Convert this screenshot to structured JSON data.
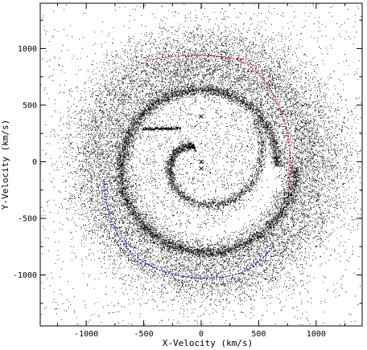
{
  "chart_data": {
    "type": "scatter",
    "xlabel": "X-Velocity (km/s)",
    "ylabel": "Y-Velocity (km/s)",
    "xlim": [
      -1400,
      1400
    ],
    "ylim": [
      -1450,
      1400
    ],
    "xticks": [
      -1000,
      -500,
      0,
      500,
      1000
    ],
    "yticks": [
      -1000,
      -500,
      0,
      500,
      1000
    ],
    "grid": false,
    "colors": {
      "points": "#000000",
      "red_curve": "#e03030",
      "blue_curve": "#2a2ad8"
    },
    "series": [
      {
        "marker": "dots",
        "color": "#000000",
        "distribution": "dense ring between ~650 and ~1050 km/s speed with a sharp inner spiral edge; sparse scatter elsewhere",
        "ring_inner_radius": 650,
        "ring_outer_radius": 1050
      },
      {
        "marker": "curve",
        "color": "#e03030",
        "x": [
          -480,
          -400,
          -300,
          -200,
          -100,
          0,
          100,
          200,
          300,
          400,
          500,
          600,
          680,
          740,
          770,
          775,
          760
        ],
        "y": [
          890,
          910,
          925,
          935,
          940,
          940,
          935,
          925,
          905,
          860,
          780,
          650,
          480,
          300,
          120,
          -60,
          -220
        ]
      },
      {
        "marker": "curve",
        "color": "#2a2ad8",
        "x": [
          -850,
          -830,
          -790,
          -720,
          -620,
          -500,
          -360,
          -220,
          -80,
          60,
          200,
          340,
          460,
          560,
          640
        ],
        "y": [
          -160,
          -330,
          -500,
          -660,
          -790,
          -890,
          -960,
          -1000,
          -1025,
          -1030,
          -1020,
          -985,
          -920,
          -830,
          -730
        ]
      },
      {
        "marker": "x",
        "color": "#000000",
        "x": [
          0,
          0,
          0
        ],
        "y": [
          400,
          0,
          -60
        ]
      }
    ]
  }
}
